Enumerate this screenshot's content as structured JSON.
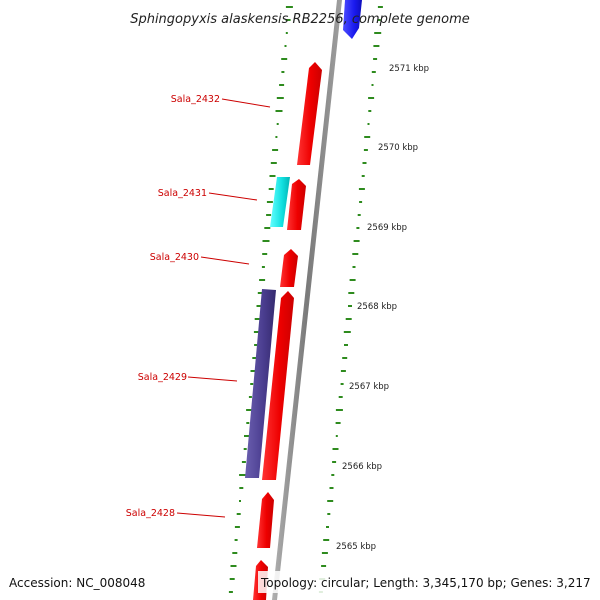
{
  "title": "Sphingopyxis alaskensis RB2256, complete genome",
  "footer": {
    "accession": "Accession: NC_008048",
    "info": "Topology: circular; Length: 3,345,170 bp; Genes: 3,217"
  },
  "colors": {
    "background": "#ffffff",
    "backbone": "#8c8c8c",
    "gc_dots": "#2e8b1e",
    "gene_forward": "#ee1111",
    "gene_other": "#11dddd",
    "gene_reverse": "#4a3d8f",
    "gene_blue": "#1a1aee",
    "label": "#cc0000"
  },
  "scale_labels": [
    "2571 kbp",
    "2570 kbp",
    "2569 kbp",
    "2568 kbp",
    "2567 kbp",
    "2566 kbp",
    "2565 kbp"
  ],
  "gene_labels": [
    "Sala_2432",
    "Sala_2431",
    "Sala_2430",
    "Sala_2429",
    "Sala_2428"
  ]
}
